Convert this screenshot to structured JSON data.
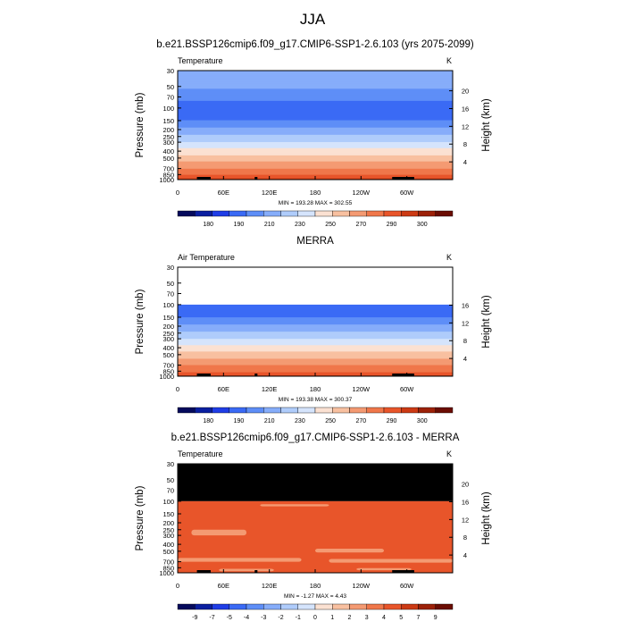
{
  "page": {
    "title": "JJA"
  },
  "chart_data": [
    {
      "type": "heatmap",
      "title": "b.e21.BSSP126cmip6.f09_g17.CMIP6-SSP1-2.6.103 (yrs 2075-2099)",
      "left_label": "Temperature",
      "units": "K",
      "xlabel": "",
      "ylabel": "Pressure (mb)",
      "ylabel_right": "Height (km)",
      "x_ticks": [
        "0",
        "60E",
        "120E",
        "180",
        "120W",
        "60W"
      ],
      "y_ticks": [
        "30",
        "50",
        "70",
        "100",
        "150",
        "200",
        "250",
        "300",
        "400",
        "500",
        "700",
        "850",
        "1000"
      ],
      "height_ticks": [
        "20",
        "16",
        "12",
        "8",
        "4"
      ],
      "stats": "MIN = 193.28  MAX = 302.55",
      "colorbar": {
        "labels": [
          "180",
          "190",
          "210",
          "230",
          "250",
          "270",
          "290",
          "300"
        ],
        "colors": [
          "#050a5c",
          "#0a1fa0",
          "#1f3de6",
          "#3a6af5",
          "#5e8ef7",
          "#86adfa",
          "#afccfb",
          "#d5e4fc",
          "#fbe1d2",
          "#f8c0a0",
          "#f49a72",
          "#f0774a",
          "#e8552a",
          "#cc3a14",
          "#9c2108",
          "#6b0d03"
        ]
      },
      "profile": [
        {
          "p": 30,
          "temp": 230
        },
        {
          "p": 50,
          "temp": 222
        },
        {
          "p": 70,
          "temp": 213
        },
        {
          "p": 100,
          "temp": 205
        },
        {
          "p": 150,
          "temp": 210
        },
        {
          "p": 200,
          "temp": 222
        },
        {
          "p": 250,
          "temp": 232
        },
        {
          "p": 300,
          "temp": 240
        },
        {
          "p": 400,
          "temp": 254
        },
        {
          "p": 500,
          "temp": 264
        },
        {
          "p": 700,
          "temp": 280
        },
        {
          "p": 850,
          "temp": 289
        },
        {
          "p": 1000,
          "temp": 298
        }
      ]
    },
    {
      "type": "heatmap",
      "title": "MERRA",
      "left_label": "Air Temperature",
      "units": "K",
      "xlabel": "",
      "ylabel": "Pressure (mb)",
      "ylabel_right": "Height (km)",
      "x_ticks": [
        "0",
        "60E",
        "120E",
        "180",
        "120W",
        "60W"
      ],
      "y_ticks": [
        "30",
        "50",
        "70",
        "100",
        "150",
        "200",
        "250",
        "300",
        "400",
        "500",
        "700",
        "850",
        "1000"
      ],
      "height_ticks": [
        "16",
        "12",
        "8",
        "4"
      ],
      "stats": "MIN = 193.38  MAX = 300.37",
      "colorbar": {
        "labels": [
          "180",
          "190",
          "210",
          "230",
          "250",
          "270",
          "290",
          "300"
        ],
        "colors": [
          "#050a5c",
          "#0a1fa0",
          "#1f3de6",
          "#3a6af5",
          "#5e8ef7",
          "#86adfa",
          "#afccfb",
          "#d5e4fc",
          "#fbe1d2",
          "#f8c0a0",
          "#f49a72",
          "#f0774a",
          "#e8552a",
          "#cc3a14",
          "#9c2108",
          "#6b0d03"
        ]
      },
      "data_top_p": 100,
      "profile": [
        {
          "p": 100,
          "temp": 205
        },
        {
          "p": 150,
          "temp": 210
        },
        {
          "p": 200,
          "temp": 222
        },
        {
          "p": 250,
          "temp": 232
        },
        {
          "p": 300,
          "temp": 240
        },
        {
          "p": 400,
          "temp": 254
        },
        {
          "p": 500,
          "temp": 264
        },
        {
          "p": 700,
          "temp": 280
        },
        {
          "p": 850,
          "temp": 288
        },
        {
          "p": 1000,
          "temp": 297
        }
      ]
    },
    {
      "type": "heatmap",
      "title": "b.e21.BSSP126cmip6.f09_g17.CMIP6-SSP1-2.6.103 - MERRA",
      "left_label": "Temperature",
      "units": "K",
      "xlabel": "",
      "ylabel": "Pressure (mb)",
      "ylabel_right": "Height (km)",
      "x_ticks": [
        "0",
        "60E",
        "120E",
        "180",
        "120W",
        "60W"
      ],
      "y_ticks": [
        "30",
        "50",
        "70",
        "100",
        "150",
        "200",
        "250",
        "300",
        "400",
        "500",
        "700",
        "850",
        "1000"
      ],
      "height_ticks": [
        "20",
        "16",
        "12",
        "8",
        "4"
      ],
      "stats": "MIN = -1.27  MAX =  4.43",
      "colorbar": {
        "labels": [
          "-9",
          "-7",
          "-5",
          "-4",
          "-3",
          "-2",
          "-1",
          "0",
          "1",
          "2",
          "3",
          "4",
          "5",
          "7",
          "9"
        ],
        "colors": [
          "#050a5c",
          "#0a1fa0",
          "#1f3de6",
          "#3a6af5",
          "#5e8ef7",
          "#86adfa",
          "#afccfb",
          "#d5e4fc",
          "#fbe1d2",
          "#f8c0a0",
          "#f49a72",
          "#f0774a",
          "#e8552a",
          "#cc3a14",
          "#9c2108",
          "#6b0d03"
        ]
      },
      "missing_above_p": 100,
      "dominant_diff": 3.5
    }
  ]
}
